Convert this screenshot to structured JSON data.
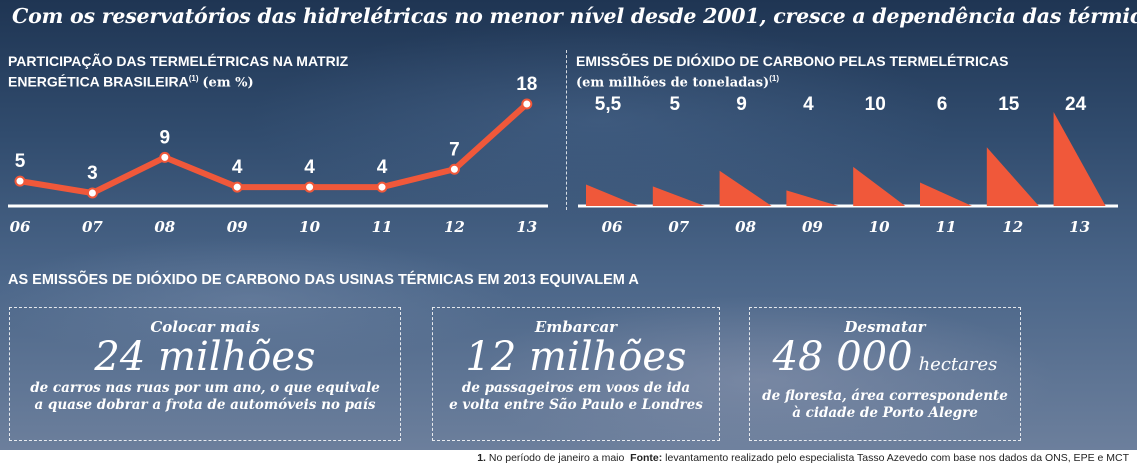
{
  "title": "Com os reservatórios das hidrelétricas no menor nível desde 2001, cresce a dependência das térmicas",
  "colors": {
    "accent": "#f0583a",
    "text": "#ffffff",
    "footer_text": "#222222"
  },
  "chart_data": [
    {
      "type": "line",
      "title_line1": "PARTICIPAÇÃO DAS TERMELÉTRICAS NA MATRIZ",
      "title_line2": "ENERGÉTICA BRASILEIRA",
      "title_sup": "(1)",
      "title_unit": "(em %)",
      "categories": [
        "06",
        "07",
        "08",
        "09",
        "10",
        "11",
        "12",
        "13"
      ],
      "values": [
        5,
        3,
        9,
        4,
        4,
        4,
        7,
        18
      ],
      "value_labels": [
        "5",
        "3",
        "9",
        "4",
        "4",
        "4",
        "7",
        "18"
      ],
      "ylim": [
        0,
        18
      ]
    },
    {
      "type": "bar",
      "title_line1": "EMISSÕES DE DIÓXIDO DE CARBONO PELAS TERMELÉTRICAS",
      "title_line2": "(em milhões de toneladas)",
      "title_sup": "(1)",
      "categories": [
        "06",
        "07",
        "08",
        "09",
        "10",
        "11",
        "12",
        "13"
      ],
      "values": [
        5.5,
        5,
        9,
        4,
        10,
        6,
        15,
        24
      ],
      "value_labels": [
        "5,5",
        "5",
        "9",
        "4",
        "10",
        "6",
        "15",
        "24"
      ],
      "ylim": [
        0,
        24
      ]
    }
  ],
  "equivalence": {
    "title": "AS EMISSÕES DE DIÓXIDO DE CARBONO DAS USINAS TÉRMICAS EM 2013 EQUIVALEM A",
    "boxes": [
      {
        "lead": "Colocar mais",
        "big": "24 milhões",
        "unit": "",
        "desc1": "de carros nas ruas por um ano, o que equivale",
        "desc2": "a quase dobrar a frota de automóveis no país"
      },
      {
        "lead": "Embarcar",
        "big": "12 milhões",
        "unit": "",
        "desc1": "de passageiros em voos de ida",
        "desc2": "e volta entre São Paulo e Londres"
      },
      {
        "lead": "Desmatar",
        "big": "48 000",
        "unit": "hectares",
        "desc1": "de floresta, área correspondente",
        "desc2": "à cidade de Porto Alegre"
      }
    ]
  },
  "footer": {
    "note_num": "1.",
    "note": "No período de janeiro a maio",
    "source_label": "Fonte:",
    "source": "levantamento realizado pelo especialista Tasso Azevedo com base nos dados da ONS, EPE e MCT"
  }
}
